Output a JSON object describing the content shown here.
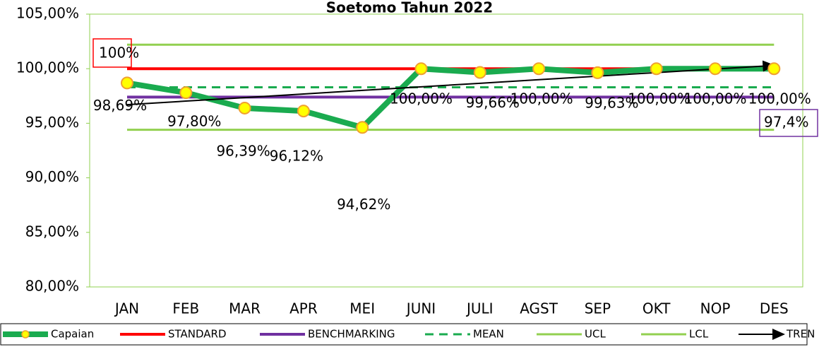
{
  "chart_data": {
    "type": "line",
    "title": "Soetomo Tahun 2022",
    "categories": [
      "JAN",
      "FEB",
      "MAR",
      "APR",
      "MEI",
      "JUNI",
      "JULI",
      "AGST",
      "SEP",
      "OKT",
      "NOP",
      "DES"
    ],
    "series": [
      {
        "name": "Capaian",
        "color": "#1aab4f",
        "values": [
          98.69,
          97.8,
          96.39,
          96.12,
          94.62,
          100,
          99.66,
          100,
          99.63,
          100,
          100,
          100
        ],
        "value_labels": [
          "98,69%",
          "97,80%",
          "96,39%",
          "96,12%",
          "94,62%",
          "100,00%",
          "99,66%",
          "100,00%",
          "99,63%",
          "100,00%",
          "100,00%",
          "100,00%"
        ]
      },
      {
        "name": "STANDARD",
        "color": "#ff0000",
        "values": [
          100,
          100,
          100,
          100,
          100,
          100,
          100,
          100,
          100,
          100,
          100,
          100
        ]
      },
      {
        "name": "BENCHMARKING",
        "color": "#7030a0",
        "values": [
          97.4,
          97.4,
          97.4,
          97.4,
          97.4,
          97.4,
          97.4,
          97.4,
          97.4,
          97.4,
          97.4,
          97.4
        ]
      },
      {
        "name": "MEAN",
        "color": "#1aab4f",
        "values": [
          98.3,
          98.3,
          98.3,
          98.3,
          98.3,
          98.3,
          98.3,
          98.3,
          98.3,
          98.3,
          98.3,
          98.3
        ]
      },
      {
        "name": "UCL",
        "color": "#92d050",
        "values": [
          102.2,
          102.2,
          102.2,
          102.2,
          102.2,
          102.2,
          102.2,
          102.2,
          102.2,
          102.2,
          102.2,
          102.2
        ]
      },
      {
        "name": "LCL",
        "color": "#92d050",
        "values": [
          94.4,
          94.4,
          94.4,
          94.4,
          94.4,
          94.4,
          94.4,
          94.4,
          94.4,
          94.4,
          94.4,
          94.4
        ]
      },
      {
        "name": "TREN",
        "color": "#000000",
        "values": [
          96.7,
          97.03,
          97.35,
          97.68,
          98.01,
          98.34,
          98.66,
          98.99,
          99.32,
          99.64,
          99.97,
          100.3
        ]
      }
    ],
    "ylim": [
      80,
      105
    ],
    "yticks": [
      {
        "value": 80,
        "label": "80,00%"
      },
      {
        "value": 85,
        "label": "85,00%"
      },
      {
        "value": 90,
        "label": "90,00%"
      },
      {
        "value": 95,
        "label": "95,00%"
      },
      {
        "value": 100,
        "label": "100,00%"
      },
      {
        "value": 105,
        "label": "105,00%"
      }
    ],
    "annotations": [
      "100%",
      "97,4%"
    ]
  }
}
